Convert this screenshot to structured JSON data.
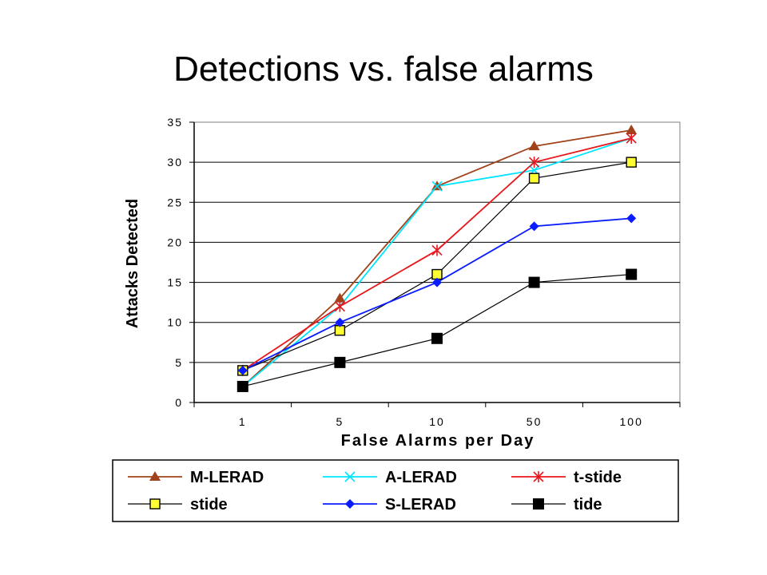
{
  "slide": {
    "title": "Detections vs. false alarms"
  },
  "chart_data": {
    "type": "line",
    "title": "",
    "xlabel": "False Alarms per Day",
    "ylabel": "Attacks Detected",
    "categories": [
      "1",
      "5",
      "10",
      "50",
      "100"
    ],
    "ylim": [
      0,
      35
    ],
    "yticks": [
      "0",
      "5",
      "10",
      "15",
      "20",
      "25",
      "30",
      "35"
    ],
    "grid": "horizontal",
    "legend_position": "bottom",
    "series": [
      {
        "name": "M-LERAD",
        "color": "#a0421a",
        "marker": "triangle",
        "values": [
          2,
          13,
          27,
          32,
          34
        ]
      },
      {
        "name": "A-LERAD",
        "color": "#00e5ff",
        "marker": "x",
        "values": [
          2,
          12,
          27,
          29,
          33
        ]
      },
      {
        "name": "t-stide",
        "color": "#e8161b",
        "marker": "star",
        "values": [
          4,
          12,
          19,
          30,
          33
        ]
      },
      {
        "name": "stide",
        "color": "#000000",
        "marker": "square-yellow",
        "values": [
          4,
          9,
          16,
          28,
          30
        ]
      },
      {
        "name": "S-LERAD",
        "color": "#0a1cff",
        "marker": "diamond",
        "values": [
          4,
          10,
          15,
          22,
          23
        ]
      },
      {
        "name": "tide",
        "color": "#000000",
        "marker": "square-black",
        "values": [
          2,
          5,
          8,
          15,
          16
        ]
      }
    ]
  }
}
